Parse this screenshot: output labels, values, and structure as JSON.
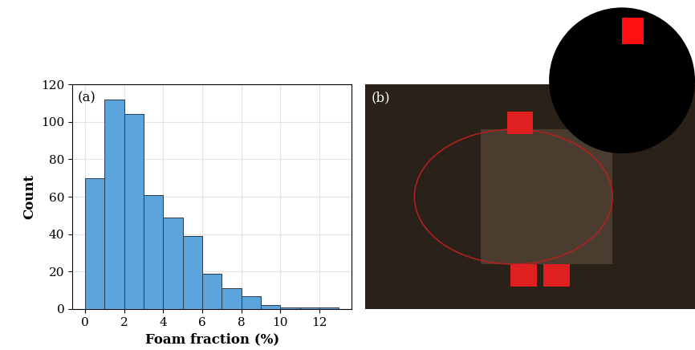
{
  "chart_data": {
    "type": "histogram",
    "x_label": "Foam fraction (%)",
    "y_label": "Count",
    "annotations": [
      "(a)"
    ],
    "bins": [
      0,
      1,
      2,
      3,
      4,
      5,
      6,
      7,
      8,
      9,
      10,
      11,
      12,
      13
    ],
    "values": [
      70,
      112,
      104,
      61,
      49,
      39,
      19,
      11,
      7,
      2,
      1,
      1,
      1
    ],
    "color": "#5ca4dc",
    "xlim": [
      -0.65,
      13.65
    ],
    "xticks": [
      0,
      2,
      4,
      6,
      8,
      10,
      12
    ],
    "ylim": [
      0,
      120
    ],
    "yticks": [
      0,
      20,
      40,
      60,
      80,
      100,
      120
    ],
    "grid": true
  },
  "image_panel": {
    "label": "(b)"
  }
}
